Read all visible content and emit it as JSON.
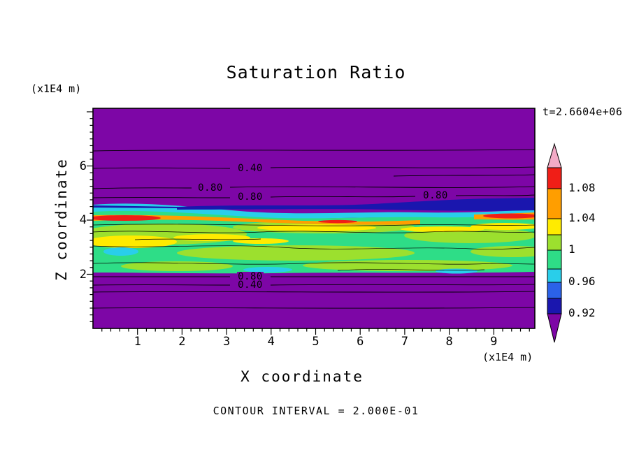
{
  "figure": {
    "title": "Saturation Ratio",
    "time_label": "t=2.6604e+06",
    "contour_note": "CONTOUR INTERVAL = 2.000E-01",
    "background": "#FFFFFF"
  },
  "axes": {
    "x_label": "X coordinate",
    "x_units": "(x1E4 m)",
    "y_label": "Z coordinate",
    "y_units": "(x1E4 m)",
    "x_ticks": [
      "1",
      "2",
      "3",
      "4",
      "5",
      "6",
      "7",
      "8",
      "9"
    ],
    "y_ticks": [
      "2",
      "4",
      "6"
    ]
  },
  "colorbar": {
    "labels": [
      "1.08",
      "1.04",
      "1",
      "0.96",
      "0.92"
    ],
    "colors": {
      "pink": "#F3AAC6",
      "red": "#F01E17",
      "orange": "#FF9E00",
      "yellow": "#FFEB00",
      "yellowgreen": "#9CE02E",
      "green": "#2EDD87",
      "cyan": "#29CEEA",
      "blue": "#2B62E8",
      "navy": "#1A16AE",
      "purple": "#7D06A6"
    }
  },
  "plot": {
    "contour_labels": [
      "0.40",
      "0.80",
      "0.80",
      "0.80",
      "0.80",
      "0.40"
    ]
  },
  "chart_data": {
    "type": "heatmap",
    "title": "Saturation Ratio",
    "xlabel": "X coordinate (x1E4 m)",
    "ylabel": "Z coordinate (x1E4 m)",
    "x_range": [
      0,
      9.9
    ],
    "y_range": [
      0,
      8.1
    ],
    "time_stamp": "t=2.6604e+06",
    "contour_interval": 0.2,
    "colorbar_ticks": [
      1.08,
      1.04,
      1,
      0.96,
      0.92
    ],
    "colorbar_order_top_to_bottom": [
      "pink",
      "red",
      "orange",
      "yellow",
      "yellowgreen",
      "green",
      "cyan",
      "blue",
      "navy",
      "purple"
    ],
    "regions": [
      {
        "z_band": [
          4.6,
          8.1
        ],
        "saturation_ratio": "below 0.4-0.8 (purple background above the saturated band)"
      },
      {
        "z_band": [
          4.2,
          4.6
        ],
        "saturation_ratio": "0.92-0.96 dark-blue/cyan layer, thickest on right half"
      },
      {
        "z_band": [
          3.9,
          4.2
        ],
        "saturation_ratio": "1.04-1.08 orange/red streak, strongest at far left and far right"
      },
      {
        "z_band": [
          2.0,
          3.9
        ],
        "saturation_ratio": "about 1.00 green band with yellow-green and yellow streaks up to 1.04"
      },
      {
        "z_band": [
          0,
          2.0
        ],
        "saturation_ratio": "drops through 0.80 (z~1.95) and 0.40 (z~1.6) to purple"
      }
    ],
    "contour_line_labels": [
      {
        "label": "0.40",
        "x": 3.5,
        "z": 5.9
      },
      {
        "label": "0.80",
        "x": 2.6,
        "z": 5.1
      },
      {
        "label": "0.80",
        "x": 3.5,
        "z": 4.8
      },
      {
        "label": "0.80",
        "x": 7.7,
        "z": 4.9
      },
      {
        "label": "0.80",
        "x": 3.5,
        "z": 1.95
      },
      {
        "label": "0.40",
        "x": 3.5,
        "z": 1.6
      }
    ]
  }
}
